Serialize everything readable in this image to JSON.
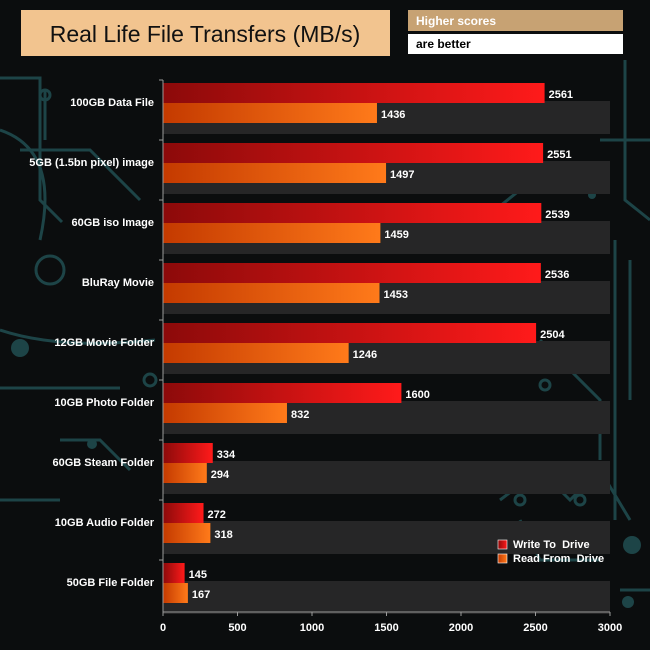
{
  "chart_data": {
    "type": "bar",
    "orientation": "horizontal",
    "title": "Real Life File Transfers (MB/s)",
    "note_line1": "Higher scores",
    "note_line2": "are better",
    "categories": [
      "100GB Data File",
      "5GB (1.5bn pixel) image",
      "60GB iso Image",
      "BluRay Movie",
      "12GB Movie Folder",
      "10GB Photo Folder",
      "60GB Steam Folder",
      "10GB Audio Folder",
      "50GB File Folder"
    ],
    "series": [
      {
        "name": "Write To  Drive",
        "values": [
          2561,
          2551,
          2539,
          2536,
          2504,
          1600,
          334,
          272,
          145
        ]
      },
      {
        "name": "Read From  Drive",
        "values": [
          1436,
          1497,
          1459,
          1453,
          1246,
          832,
          294,
          318,
          167
        ]
      }
    ],
    "xlim": [
      0,
      3000
    ],
    "xticks": [
      0,
      500,
      1000,
      1500,
      2000,
      2500,
      3000
    ],
    "legend_position": "bottom-right",
    "colors": {
      "background": "#0b0d0e",
      "circuit": "#1d4447",
      "band": "#262627",
      "write_dark": "#8c0a0a",
      "write_light": "#ff1a1a",
      "read_dark": "#c43a00",
      "read_light": "#ff7a1a",
      "title_box": "#f2c48f",
      "note_box": "#c7a273",
      "axis": "#9a9a9a",
      "text": "#ffffff"
    }
  }
}
